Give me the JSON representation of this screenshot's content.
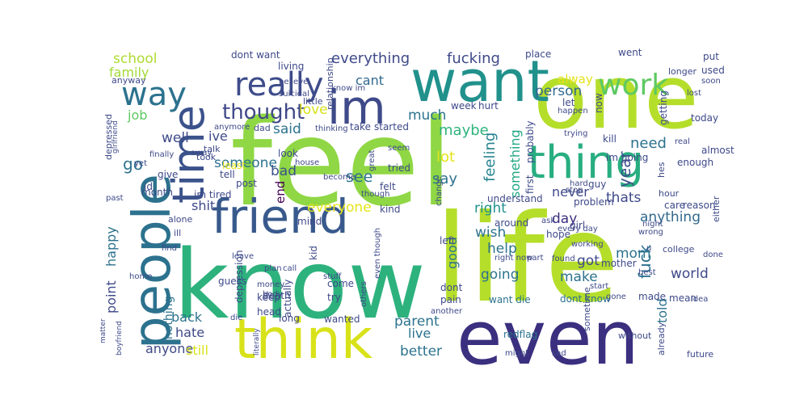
{
  "words": [
    {
      "text": "feel",
      "color": "#8fd744"
    },
    {
      "text": "life",
      "color": "#b5de2b"
    },
    {
      "text": "know",
      "color": "#2db27d"
    },
    {
      "text": "one",
      "color": "#b5de2b"
    },
    {
      "text": "even",
      "color": "#3b2f7f"
    },
    {
      "text": "want",
      "color": "#21918c"
    },
    {
      "text": "people",
      "color": "#2c728e"
    },
    {
      "text": "think",
      "color": "#d8e219"
    },
    {
      "text": "time",
      "color": "#3b528b"
    },
    {
      "text": "im",
      "color": "#3e4a89"
    },
    {
      "text": "friend",
      "color": "#38598c"
    },
    {
      "text": "thing",
      "color": "#28ae80"
    },
    {
      "text": "really",
      "color": "#3e4c8a"
    },
    {
      "text": "way",
      "color": "#2c728e"
    },
    {
      "text": "work",
      "color": "#5ec962"
    },
    {
      "text": "thought",
      "color": "#3f4889"
    },
    {
      "text": "everything",
      "color": "#3e4989"
    },
    {
      "text": "fucking",
      "color": "#3e4989"
    },
    {
      "text": "school",
      "color": "#addc30"
    },
    {
      "text": "family",
      "color": "#a2da37"
    },
    {
      "text": "person",
      "color": "#31688e"
    },
    {
      "text": "alway",
      "color": "#e5e419"
    },
    {
      "text": "love",
      "color": "#d8e219"
    },
    {
      "text": "much",
      "color": "#2c728e"
    },
    {
      "text": "said",
      "color": "#2c728e"
    },
    {
      "text": "maybe",
      "color": "#2fb47c"
    },
    {
      "text": "cant",
      "color": "#31688e"
    },
    {
      "text": "ive",
      "color": "#3e4a89"
    },
    {
      "text": "job",
      "color": "#5ec962"
    },
    {
      "text": "well",
      "color": "#3e4a89"
    },
    {
      "text": "go",
      "color": "#2c728e"
    },
    {
      "text": "someone",
      "color": "#2c728e"
    },
    {
      "text": "lot",
      "color": "#e5e419"
    },
    {
      "text": "see",
      "color": "#2c728e"
    },
    {
      "text": "say",
      "color": "#2c728e"
    },
    {
      "text": "bad",
      "color": "#3b528b"
    },
    {
      "text": "end",
      "color": "#440154"
    },
    {
      "text": "everyone",
      "color": "#e5e419"
    },
    {
      "text": "feeling",
      "color": "#25838e"
    },
    {
      "text": "something",
      "color": "#22a884"
    },
    {
      "text": "need",
      "color": "#2c728e"
    },
    {
      "text": "fuck",
      "color": "#2c728e"
    },
    {
      "text": "year",
      "color": "#3b528b"
    },
    {
      "text": "thats",
      "color": "#3e4a89"
    },
    {
      "text": "never",
      "color": "#3e4989"
    },
    {
      "text": "day",
      "color": "#3b2f7f"
    },
    {
      "text": "right",
      "color": "#21918c"
    },
    {
      "text": "anything",
      "color": "#31688e"
    },
    {
      "text": "shit",
      "color": "#3e4989"
    },
    {
      "text": "happy",
      "color": "#2c728e"
    },
    {
      "text": "point",
      "color": "#3e4a89"
    },
    {
      "text": "nothing",
      "color": "#2c728e"
    },
    {
      "text": "back",
      "color": "#2c728e"
    },
    {
      "text": "hate",
      "color": "#3e4989"
    },
    {
      "text": "anyone",
      "color": "#3e4989"
    },
    {
      "text": "still",
      "color": "#d8e219"
    },
    {
      "text": "parent",
      "color": "#2c728e"
    },
    {
      "text": "live",
      "color": "#2c728e"
    },
    {
      "text": "better",
      "color": "#2c728e"
    },
    {
      "text": "wish",
      "color": "#2c728e"
    },
    {
      "text": "help",
      "color": "#2c728e"
    },
    {
      "text": "going",
      "color": "#2c728e"
    },
    {
      "text": "make",
      "color": "#2c728e"
    },
    {
      "text": "got",
      "color": "#3e4989"
    },
    {
      "text": "mom",
      "color": "#2c728e"
    },
    {
      "text": "world",
      "color": "#3e4989"
    },
    {
      "text": "told",
      "color": "#2c728e"
    },
    {
      "text": "good",
      "color": "#2c728e"
    },
    {
      "text": "want die",
      "color": "#2c728e"
    },
    {
      "text": "dont know",
      "color": "#2c728e"
    },
    {
      "text": "redflag",
      "color": "#2c728e"
    },
    {
      "text": "im tired",
      "color": "#3e4989"
    },
    {
      "text": "month",
      "color": "#3e4989"
    },
    {
      "text": "id",
      "color": "#3e4989"
    },
    {
      "text": "tell",
      "color": "#3e4989"
    },
    {
      "text": "post",
      "color": "#3e4989"
    },
    {
      "text": "give",
      "color": "#3e4989"
    },
    {
      "text": "least",
      "color": "#e5e419"
    },
    {
      "text": "look",
      "color": "#3e4989"
    },
    {
      "text": "felt",
      "color": "#3e4989"
    },
    {
      "text": "tried",
      "color": "#3e4989"
    },
    {
      "text": "mind",
      "color": "#3e4989"
    },
    {
      "text": "kid",
      "color": "#3e4989"
    },
    {
      "text": "guess",
      "color": "#3e4989"
    },
    {
      "text": "death",
      "color": "#3e4989"
    },
    {
      "text": "depression",
      "color": "#3e4989"
    },
    {
      "text": "keep",
      "color": "#3e4989"
    },
    {
      "text": "head",
      "color": "#3e4989"
    },
    {
      "text": "come",
      "color": "#3e4989"
    },
    {
      "text": "try",
      "color": "#3e4989"
    },
    {
      "text": "actually",
      "color": "#3e4989"
    },
    {
      "text": "long",
      "color": "#3e4989"
    },
    {
      "text": "wanted",
      "color": "#3e4989"
    },
    {
      "text": "kind",
      "color": "#3e4989"
    },
    {
      "text": "left",
      "color": "#3e4989"
    },
    {
      "text": "dont",
      "color": "#3e4989"
    },
    {
      "text": "pain",
      "color": "#3e4989"
    },
    {
      "text": "understand",
      "color": "#3e4989"
    },
    {
      "text": "started",
      "color": "#3e4989"
    },
    {
      "text": "take",
      "color": "#3e4989"
    },
    {
      "text": "week",
      "color": "#3e4989"
    },
    {
      "text": "hurt",
      "color": "#3e4989"
    },
    {
      "text": "first",
      "color": "#3e4989"
    },
    {
      "text": "probably",
      "color": "#3e4989"
    },
    {
      "text": "around",
      "color": "#3e4989"
    },
    {
      "text": "problem",
      "color": "#3e4989"
    },
    {
      "text": "hope",
      "color": "#3e4989"
    },
    {
      "text": "girl",
      "color": "#3e4989"
    },
    {
      "text": "guy",
      "color": "#3e4989"
    },
    {
      "text": "mother",
      "color": "#3e4989"
    },
    {
      "text": "made",
      "color": "#3e4989"
    },
    {
      "text": "mean",
      "color": "#3e4989"
    },
    {
      "text": "care",
      "color": "#3e4989"
    },
    {
      "text": "reason",
      "color": "#3e4989"
    },
    {
      "text": "kill",
      "color": "#3e4989"
    },
    {
      "text": "im going",
      "color": "#3e4989"
    },
    {
      "text": "enough",
      "color": "#3e4989"
    },
    {
      "text": "almost",
      "color": "#3e4989"
    },
    {
      "text": "today",
      "color": "#3e4989"
    },
    {
      "text": "getting",
      "color": "#3e4989"
    },
    {
      "text": "used",
      "color": "#3e4989"
    },
    {
      "text": "put",
      "color": "#3e4989"
    },
    {
      "text": "went",
      "color": "#3e4989"
    },
    {
      "text": "place",
      "color": "#3e4989"
    },
    {
      "text": "let",
      "color": "#3e4989"
    },
    {
      "text": "now",
      "color": "#3e4989"
    },
    {
      "text": "dont want",
      "color": "#3e4989"
    },
    {
      "text": "living",
      "color": "#3e4989"
    },
    {
      "text": "relationship",
      "color": "#3e4989"
    },
    {
      "text": "anyway",
      "color": "#3e4989"
    },
    {
      "text": "dad",
      "color": "#3e4989"
    },
    {
      "text": "talk",
      "color": "#3e4989"
    },
    {
      "text": "took",
      "color": "#3e4989"
    },
    {
      "text": "depressed",
      "color": "#3e4989"
    },
    {
      "text": "alone",
      "color": "#3e4989"
    },
    {
      "text": "ill",
      "color": "#3e4989"
    },
    {
      "text": "little",
      "color": "#3e4989"
    },
    {
      "text": "without",
      "color": "#3e4989"
    },
    {
      "text": "sometime",
      "color": "#3e4989"
    },
    {
      "text": "already",
      "color": "#3e4989"
    },
    {
      "text": "college",
      "color": "#3e4989"
    },
    {
      "text": "either",
      "color": "#3e4989"
    },
    {
      "text": "hour",
      "color": "#3e4989"
    },
    {
      "text": "future",
      "color": "#3e4989"
    },
    {
      "text": "hes",
      "color": "#3e4989"
    },
    {
      "text": "longer",
      "color": "#3e4989"
    },
    {
      "text": "soon",
      "color": "#3e4989"
    },
    {
      "text": "lost",
      "color": "#3e4989"
    },
    {
      "text": "real",
      "color": "#3e4989"
    },
    {
      "text": "happen",
      "color": "#3e4989"
    },
    {
      "text": "trying",
      "color": "#3e4989"
    },
    {
      "text": "stop",
      "color": "#3e4989"
    },
    {
      "text": "hard",
      "color": "#3e4989"
    },
    {
      "text": "ask",
      "color": "#3e4989"
    },
    {
      "text": "every day",
      "color": "#3e4989"
    },
    {
      "text": "found",
      "color": "#3e4989"
    },
    {
      "text": "working",
      "color": "#3e4989"
    },
    {
      "text": "start",
      "color": "#3e4989"
    },
    {
      "text": "gone",
      "color": "#3e4989"
    },
    {
      "text": "best",
      "color": "#3e4989"
    },
    {
      "text": "idea",
      "color": "#3e4989"
    },
    {
      "text": "wrong",
      "color": "#3e4989"
    },
    {
      "text": "night",
      "color": "#3e4989"
    },
    {
      "text": "done",
      "color": "#3e4989"
    },
    {
      "text": "sad",
      "color": "#3e4989"
    },
    {
      "text": "might",
      "color": "#3e4989"
    },
    {
      "text": "another",
      "color": "#3e4989"
    },
    {
      "text": "others",
      "color": "#3e4989"
    },
    {
      "text": "even though",
      "color": "#3e4989"
    },
    {
      "text": "right now",
      "color": "#3e4989"
    },
    {
      "text": "part",
      "color": "#3e4989"
    },
    {
      "text": "change",
      "color": "#3e4989"
    },
    {
      "text": "though",
      "color": "#3e4989"
    },
    {
      "text": "become",
      "color": "#3e4989"
    },
    {
      "text": "house",
      "color": "#3e4989"
    },
    {
      "text": "great",
      "color": "#3e4989"
    },
    {
      "text": "seem",
      "color": "#3e4989"
    },
    {
      "text": "thinking",
      "color": "#3e4989"
    },
    {
      "text": "suicidal",
      "color": "#3e4989"
    },
    {
      "text": "know im",
      "color": "#3e4989"
    },
    {
      "text": "believe",
      "color": "#3e4989"
    },
    {
      "text": "anymore",
      "color": "#3e4989"
    },
    {
      "text": "girlfriend",
      "color": "#3e4989"
    },
    {
      "text": "finally",
      "color": "#3e4989"
    },
    {
      "text": "away",
      "color": "#3e4989"
    },
    {
      "text": "yet",
      "color": "#3e4989"
    },
    {
      "text": "past",
      "color": "#3e4989"
    },
    {
      "text": "leave",
      "color": "#3e4989"
    },
    {
      "text": "plan",
      "color": "#3e4989"
    },
    {
      "text": "call",
      "color": "#3e4989"
    },
    {
      "text": "home",
      "color": "#3e4989"
    },
    {
      "text": "find",
      "color": "#3e4989"
    },
    {
      "text": "body",
      "color": "#3e4989"
    },
    {
      "text": "money",
      "color": "#3e4989"
    },
    {
      "text": "stuff",
      "color": "#3e4989"
    },
    {
      "text": "die",
      "color": "#3e4989"
    },
    {
      "text": "literally",
      "color": "#3e4989"
    },
    {
      "text": "matter",
      "color": "#3e4989"
    },
    {
      "text": "boyfriend",
      "color": "#3e4989"
    },
    {
      "text": "u",
      "color": "#3e4989"
    }
  ]
}
